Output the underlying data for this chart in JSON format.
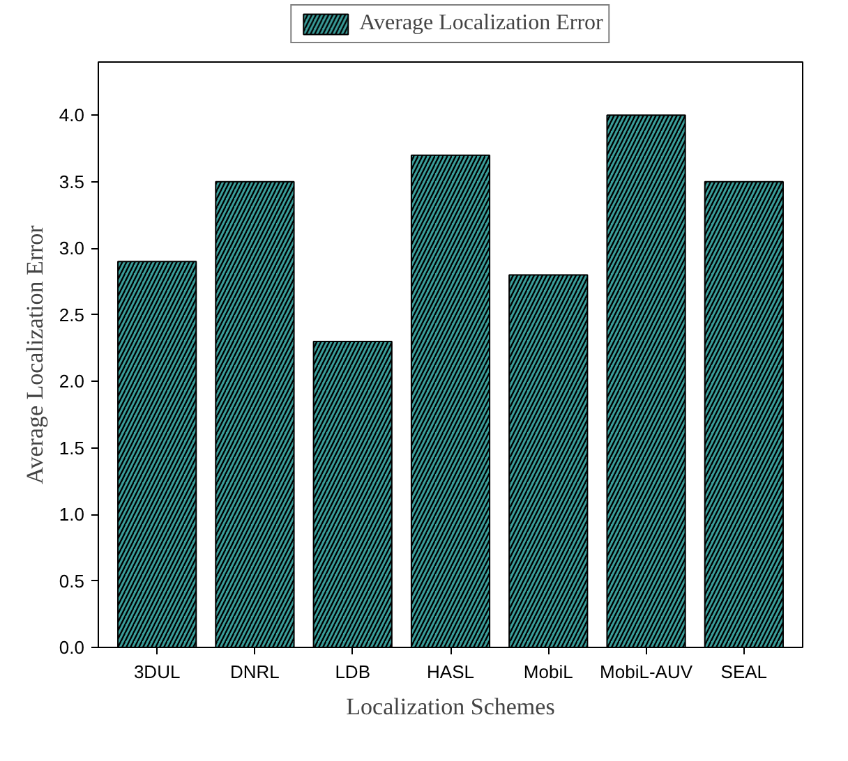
{
  "chart_data": {
    "type": "bar",
    "xlabel": "Localization Schemes",
    "ylabel": "Average Localization Error",
    "categories": [
      "3DUL",
      "DNRL",
      "LDB",
      "HASL",
      "MobiL",
      "MobiL-AUV",
      "SEAL"
    ],
    "series": [
      {
        "name": "Average Localization Error",
        "color": "#3a9e9a",
        "values": [
          2.9,
          3.5,
          2.3,
          3.7,
          2.8,
          4.0,
          3.5
        ]
      }
    ],
    "ylim": [
      0,
      4.4
    ],
    "yticks": [
      {
        "value": 0,
        "label": "0.0"
      },
      {
        "value": 0.5,
        "label": "0.5"
      },
      {
        "value": 1,
        "label": "1.0"
      },
      {
        "value": 1.5,
        "label": "1.5"
      },
      {
        "value": 2,
        "label": "2.0"
      },
      {
        "value": 2.5,
        "label": "2.5"
      },
      {
        "value": 3,
        "label": "3.0"
      },
      {
        "value": 3.5,
        "label": "3.5"
      },
      {
        "value": 4,
        "label": "4.0"
      }
    ],
    "grid": false,
    "legend": "top"
  }
}
